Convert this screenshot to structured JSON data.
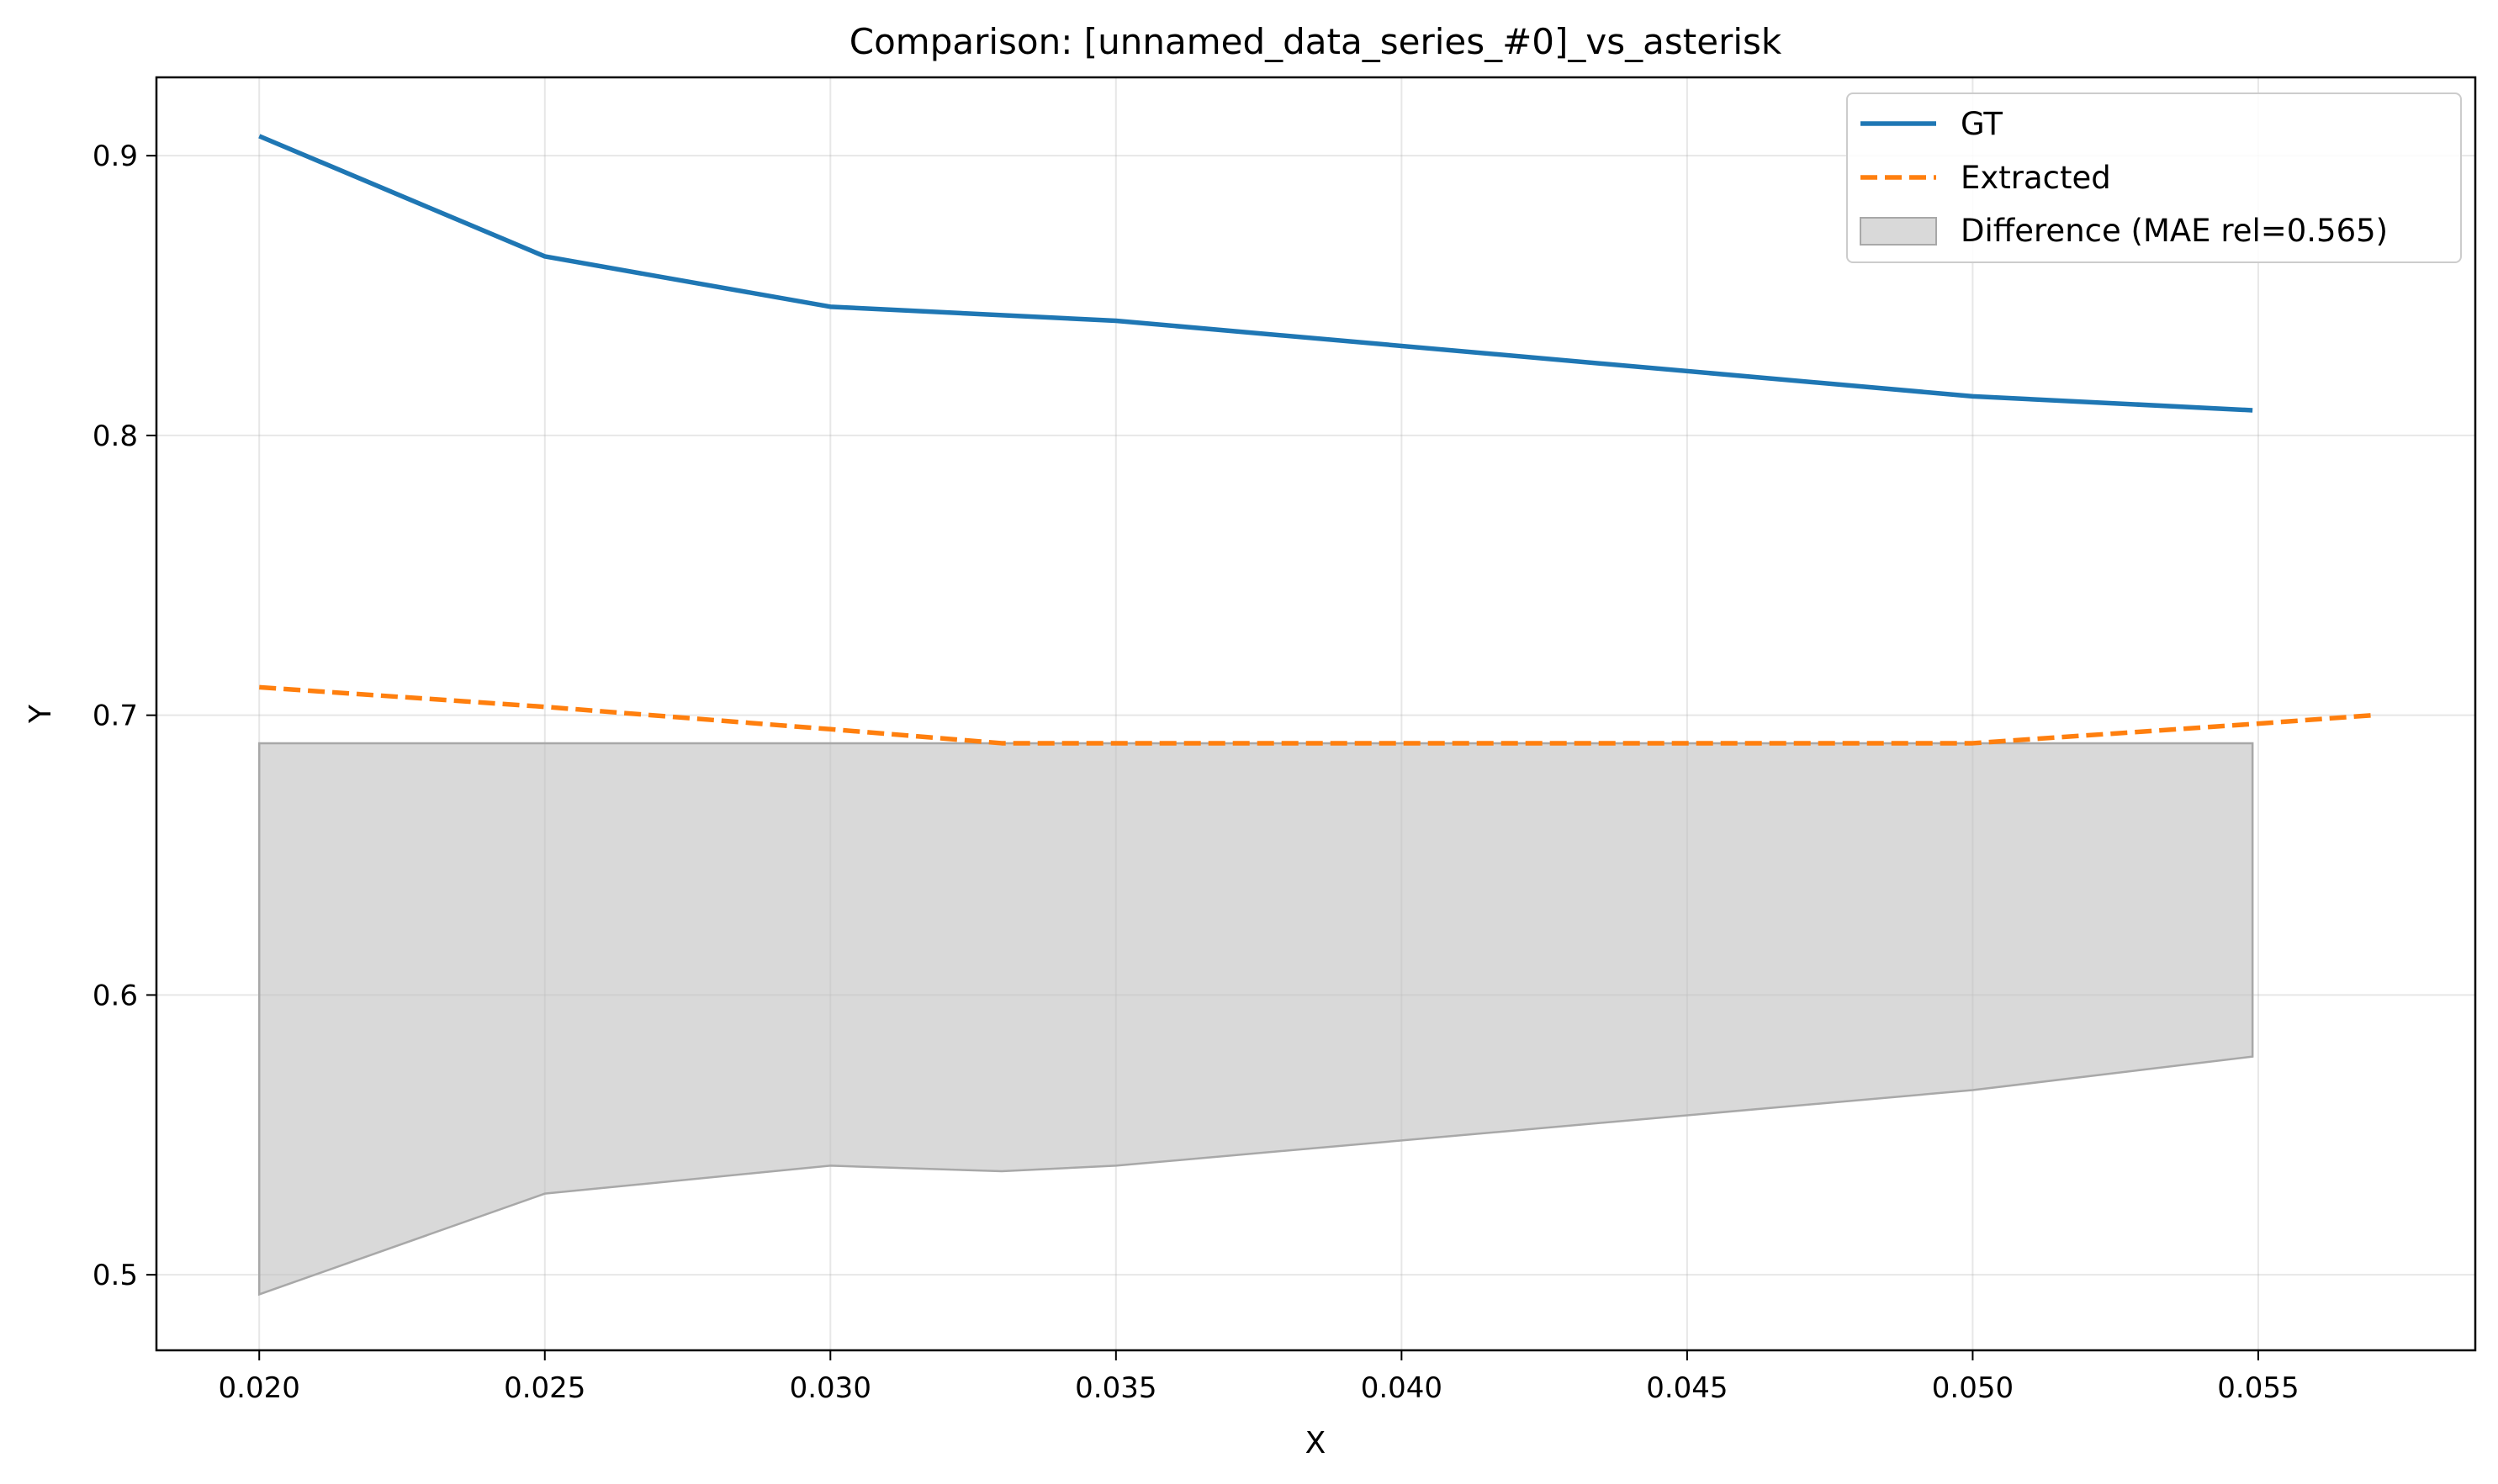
{
  "chart_data": {
    "type": "line",
    "title": "Comparison: [unnamed_data_series_#0]_vs_asterisk",
    "xlabel": "X",
    "ylabel": "Y",
    "xlim": [
      0.0182,
      0.0588
    ],
    "ylim": [
      0.473,
      0.928
    ],
    "x_ticks": [
      "0.020",
      "0.025",
      "0.030",
      "0.035",
      "0.040",
      "0.045",
      "0.050",
      "0.055"
    ],
    "x_tick_values": [
      0.02,
      0.025,
      0.03,
      0.035,
      0.04,
      0.045,
      0.05,
      0.055
    ],
    "y_ticks": [
      "0.5",
      "0.6",
      "0.7",
      "0.8",
      "0.9"
    ],
    "y_tick_values": [
      0.5,
      0.6,
      0.7,
      0.8,
      0.9
    ],
    "grid": true,
    "legend_position": "top-right",
    "series": [
      {
        "name": "GT",
        "style": "solid",
        "color": "#1f77b4",
        "x": [
          0.02,
          0.025,
          0.03,
          0.035,
          0.05,
          0.0549
        ],
        "y": [
          0.907,
          0.864,
          0.846,
          0.841,
          0.814,
          0.809
        ]
      },
      {
        "name": "Extracted",
        "style": "dashed",
        "color": "#ff7f0e",
        "x": [
          0.02,
          0.025,
          0.03,
          0.033,
          0.035,
          0.04,
          0.045,
          0.05,
          0.055,
          0.057
        ],
        "y": [
          0.71,
          0.703,
          0.695,
          0.69,
          0.69,
          0.69,
          0.69,
          0.69,
          0.697,
          0.7
        ]
      }
    ],
    "difference": {
      "name": "Difference (MAE rel=0.565)",
      "color": "#bfbfbf",
      "x": [
        0.02,
        0.025,
        0.03,
        0.033,
        0.035,
        0.05,
        0.0549
      ],
      "upper": [
        0.69,
        0.69,
        0.69,
        0.69,
        0.69,
        0.69,
        0.69
      ],
      "lower": [
        0.493,
        0.529,
        0.539,
        0.537,
        0.539,
        0.566,
        0.578
      ]
    }
  }
}
